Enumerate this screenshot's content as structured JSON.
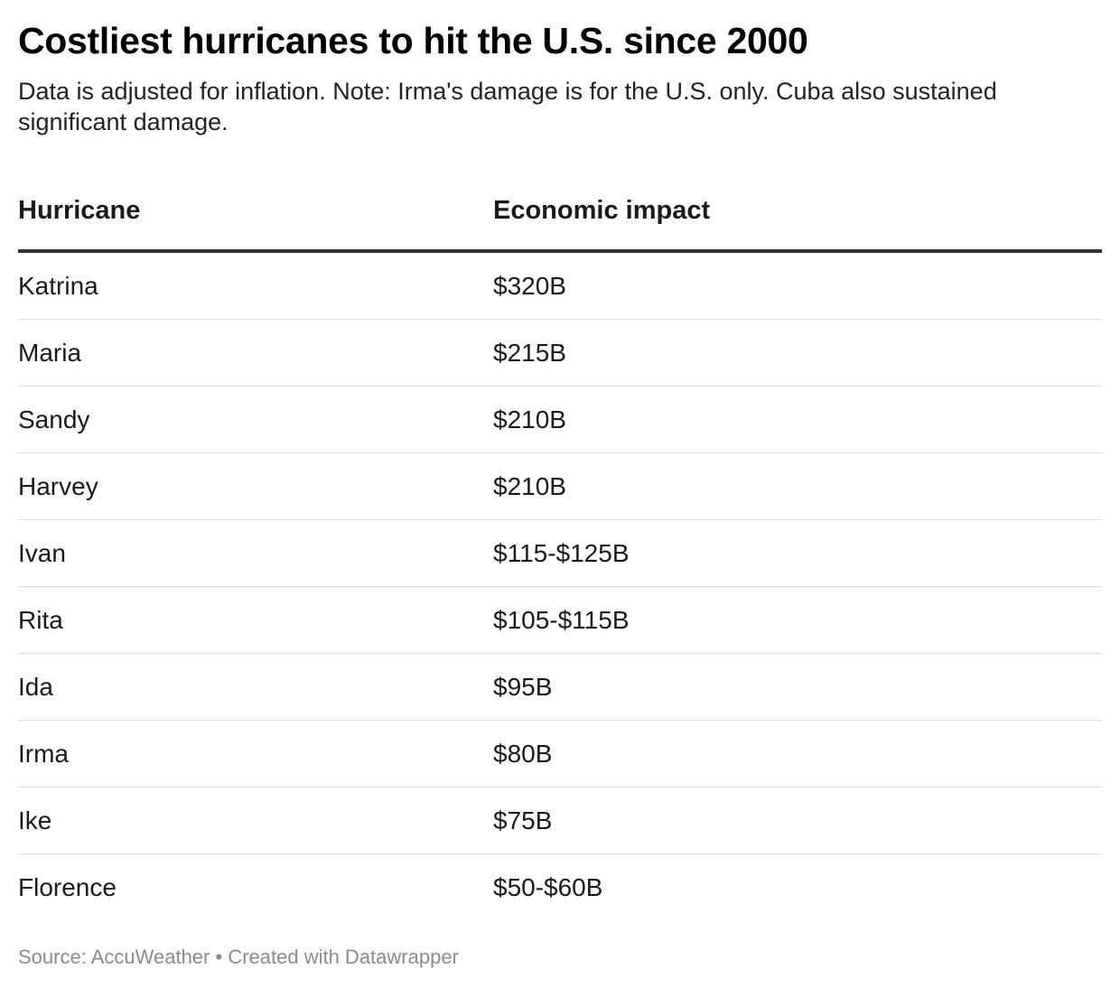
{
  "title": "Costliest hurricanes to hit the U.S. since 2000",
  "subtitle": "Data is adjusted for inflation. Note: Irma's damage is for the U.S. only. Cuba also sustained significant damage.",
  "footer": {
    "source": "Source: AccuWeather",
    "separator": " • ",
    "credit": "Created with Datawrapper"
  },
  "chart_data": {
    "type": "table",
    "title": "Costliest hurricanes to hit the U.S. since 2000",
    "columns": [
      "Hurricane",
      "Economic impact"
    ],
    "rows": [
      [
        "Katrina",
        "$320B"
      ],
      [
        "Maria",
        "$215B"
      ],
      [
        "Sandy",
        "$210B"
      ],
      [
        "Harvey",
        "$210B"
      ],
      [
        "Ivan",
        "$115-$125B"
      ],
      [
        "Rita",
        "$105-$115B"
      ],
      [
        "Ida",
        "$95B"
      ],
      [
        "Irma",
        "$80B"
      ],
      [
        "Ike",
        "$75B"
      ],
      [
        "Florence",
        "$50-$60B"
      ]
    ]
  }
}
